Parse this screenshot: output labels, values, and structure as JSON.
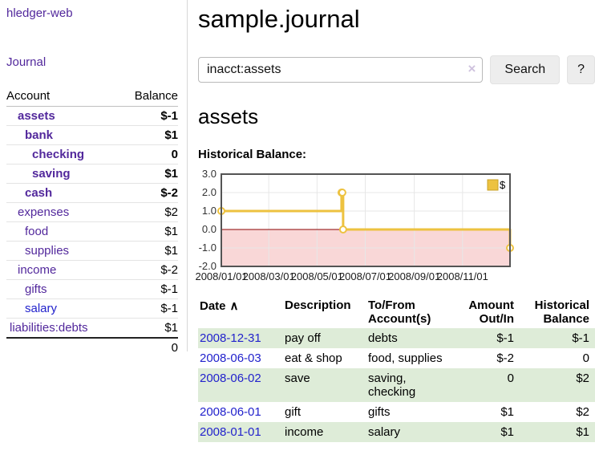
{
  "window": {
    "app_title": "hledger-web"
  },
  "sidebar": {
    "journal_link": "Journal",
    "accounts_table": {
      "headers": [
        "Account",
        "Balance"
      ],
      "rows": [
        {
          "name": "assets",
          "balance": "$-1"
        },
        {
          "name": "bank",
          "balance": "$1"
        },
        {
          "name": "checking",
          "balance": "0"
        },
        {
          "name": "saving",
          "balance": "$1"
        },
        {
          "name": "cash",
          "balance": "$-2"
        },
        {
          "name": "expenses",
          "balance": "$2"
        },
        {
          "name": "food",
          "balance": "$1"
        },
        {
          "name": "supplies",
          "balance": "$1"
        },
        {
          "name": "income",
          "balance": "$-2"
        },
        {
          "name": "gifts",
          "balance": "$-1"
        },
        {
          "name": "salary",
          "balance": "$-1"
        },
        {
          "name": "liabilities:debts",
          "balance": "$1"
        }
      ],
      "total": "0"
    }
  },
  "main": {
    "title": "sample.journal",
    "search": {
      "value": "inacct:assets",
      "clear_icon": "×",
      "search_label": "Search",
      "help_label": "?"
    },
    "account_heading": "assets",
    "chart_heading": "Historical Balance:"
  },
  "register": {
    "headers": [
      "Date",
      "Description",
      "To/From Account(s)",
      "Amount Out/In",
      "Historical Balance"
    ],
    "sort_icon": "∧",
    "rows": [
      {
        "date": "2008-12-31",
        "description": "pay off",
        "accounts": "debts",
        "amount": "$-1",
        "balance": "$-1"
      },
      {
        "date": "2008-06-03",
        "description": "eat & shop",
        "accounts": "food, supplies",
        "amount": "$-2",
        "balance": "0"
      },
      {
        "date": "2008-06-02",
        "description": "save",
        "accounts": "saving, checking",
        "amount": "0",
        "balance": "$2"
      },
      {
        "date": "2008-06-01",
        "description": "gift",
        "accounts": "gifts",
        "amount": "$1",
        "balance": "$2"
      },
      {
        "date": "2008-01-01",
        "description": "income",
        "accounts": "salary",
        "amount": "$1",
        "balance": "$1"
      }
    ]
  },
  "chart_data": {
    "type": "line",
    "title": "Historical Balance:",
    "step": true,
    "series": [
      {
        "name": "$",
        "points": [
          [
            "2008-01-01",
            1
          ],
          [
            "2008-06-01",
            2
          ],
          [
            "2008-06-02",
            2
          ],
          [
            "2008-06-03",
            0
          ],
          [
            "2008-12-31",
            -1
          ]
        ]
      }
    ],
    "x_ticks": [
      "2008/01/01",
      "2008/03/01",
      "2008/05/01",
      "2008/07/01",
      "2008/09/01",
      "2008/11/01"
    ],
    "y_ticks": [
      3,
      2,
      1,
      0,
      -1,
      -2
    ],
    "ylim": [
      -2,
      3
    ],
    "x_range": [
      "2008-01-01",
      "2008-12-31"
    ],
    "grid": true,
    "legend_position": "top-right",
    "negative_region_fill": true
  },
  "colors": {
    "accent_purple": "#52289c",
    "link_blue": "#2222cc",
    "negative_strong": "#7f1616",
    "negative_soft": "#c26a6a",
    "table_negative": "#8b1d1d",
    "row_green": "#deecd8",
    "chart_gold": "#edc240",
    "zero_line": "#8b0000",
    "negative_region": "#f9d7d7"
  }
}
